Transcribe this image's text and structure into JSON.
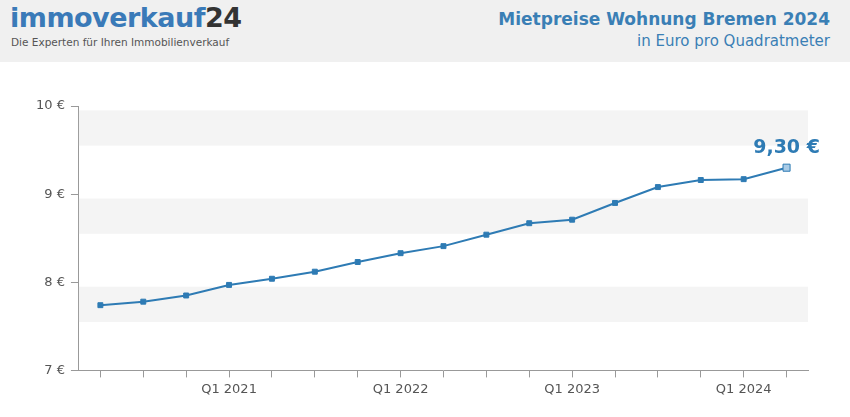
{
  "header": {
    "logo": "immoverkauf",
    "logo_suffix": "24",
    "tagline": "Die Experten für Ihren Immobilienverkauf"
  },
  "chart_data": {
    "type": "line",
    "title": "Mietpreise Wohnung Bremen 2024",
    "subtitle": "in Euro pro Quadratmeter",
    "categories": [
      null,
      null,
      null,
      "Q1 2021",
      null,
      null,
      null,
      "Q1 2022",
      null,
      null,
      null,
      "Q1 2023",
      null,
      null,
      null,
      "Q1 2024",
      null
    ],
    "values": [
      7.74,
      7.78,
      7.85,
      7.97,
      8.04,
      8.12,
      8.23,
      8.33,
      8.41,
      8.54,
      8.67,
      8.71,
      8.9,
      9.08,
      9.16,
      9.17,
      9.3
    ],
    "value_labels": [
      null,
      null,
      null,
      null,
      null,
      null,
      null,
      null,
      null,
      null,
      null,
      null,
      null,
      null,
      null,
      null,
      "9,30 €"
    ],
    "color": "#2e7bb4",
    "marker": "square",
    "line_style": "solid",
    "ylim": [
      7,
      10
    ],
    "yticks": [
      {
        "value": 7,
        "label": "7 €"
      },
      {
        "value": 8,
        "label": "8 €"
      },
      {
        "value": 9,
        "label": "9 €"
      },
      {
        "value": 10,
        "label": "10 €"
      }
    ],
    "grid": false
  }
}
